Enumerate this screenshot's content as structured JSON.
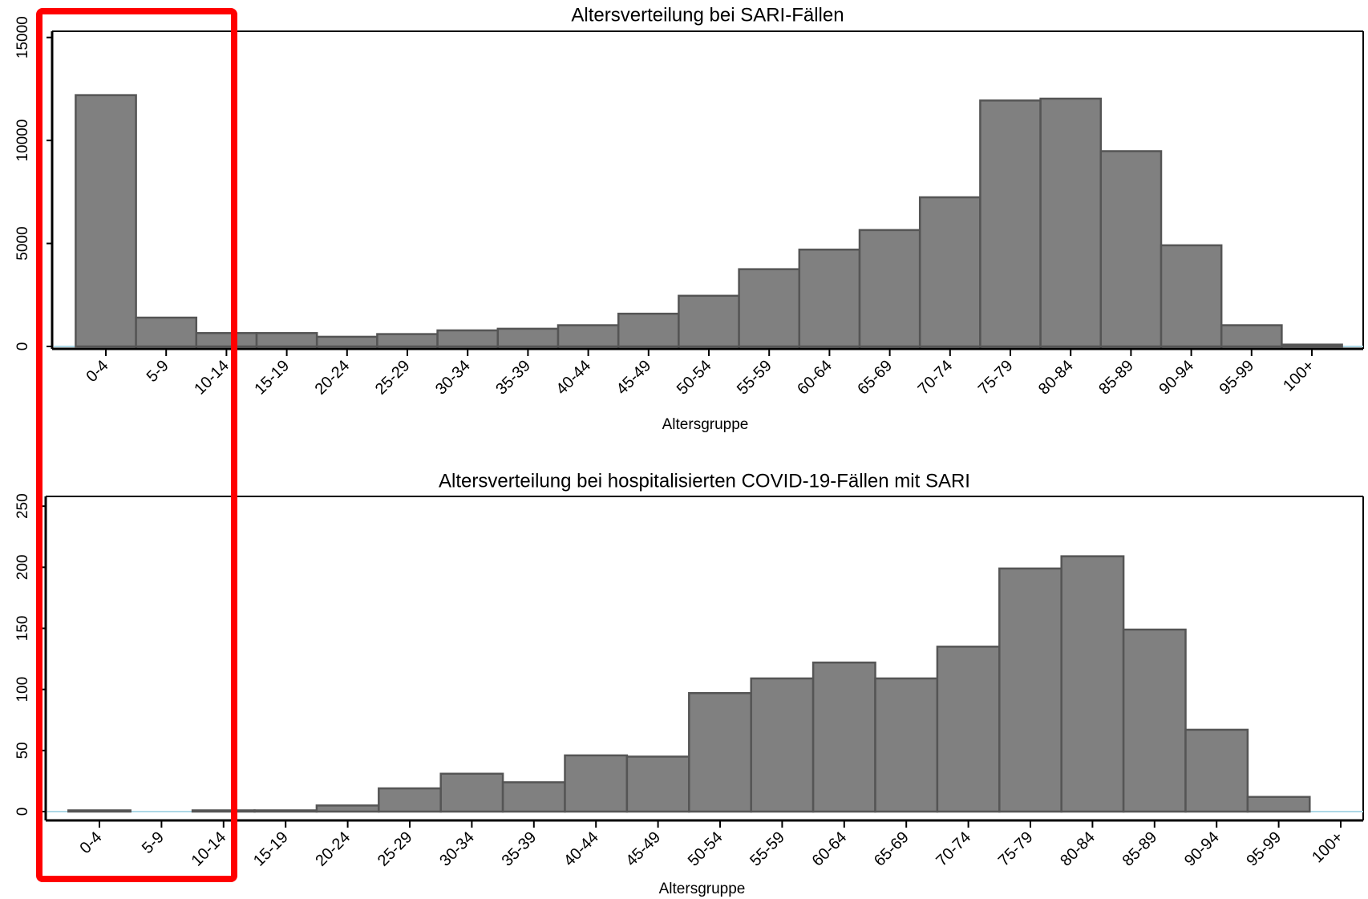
{
  "chart_data": [
    {
      "type": "bar",
      "title": "Altersverteilung bei SARI-Fällen",
      "x_label": "Altersgruppe",
      "categories": [
        "0-4",
        "5-9",
        "10-14",
        "15-19",
        "20-24",
        "25-29",
        "30-34",
        "35-39",
        "40-44",
        "45-49",
        "50-54",
        "55-59",
        "60-64",
        "65-69",
        "70-74",
        "75-79",
        "80-84",
        "85-89",
        "90-94",
        "95-99",
        "100+"
      ],
      "values": [
        12200,
        1400,
        650,
        650,
        470,
        600,
        780,
        860,
        1030,
        1590,
        2460,
        3750,
        4700,
        5650,
        7240,
        11940,
        12030,
        9480,
        4910,
        1030,
        90
      ],
      "color": "#808080",
      "ylim": [
        0,
        15300
      ],
      "yticks": [
        0,
        5000,
        10000,
        15000
      ]
    },
    {
      "type": "bar",
      "title": "Altersverteilung bei hospitalisierten COVID-19-Fällen mit SARI",
      "x_label": "Altersgruppe",
      "categories": [
        "0-4",
        "5-9",
        "10-14",
        "15-19",
        "20-24",
        "25-29",
        "30-34",
        "35-39",
        "40-44",
        "45-49",
        "50-54",
        "55-59",
        "60-64",
        "65-69",
        "70-74",
        "75-79",
        "80-84",
        "85-89",
        "90-94",
        "95-99",
        "100+"
      ],
      "values": [
        1,
        0,
        1,
        1,
        5,
        19,
        31,
        24,
        46,
        45,
        97,
        109,
        122,
        109,
        135,
        199,
        209,
        149,
        67,
        12,
        0
      ],
      "color": "#808080",
      "ylim": [
        0,
        258
      ],
      "yticks": [
        0,
        50,
        100,
        150,
        200,
        250
      ]
    }
  ]
}
